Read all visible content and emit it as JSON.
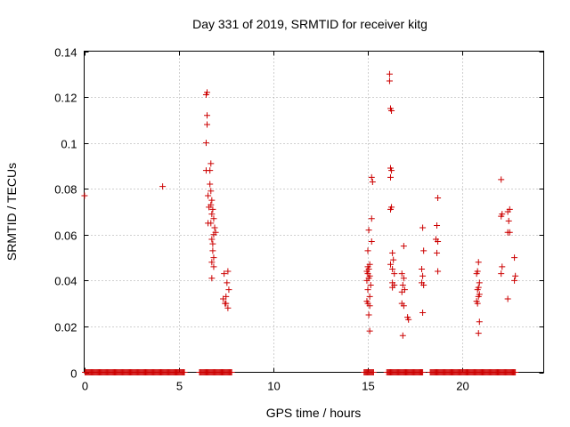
{
  "chart_data": {
    "type": "scatter",
    "title": "Day 331 of 2019, SRMTID for receiver kitg",
    "xlabel": "GPS time / hours",
    "ylabel": "SRMTID / TECUs",
    "xlim": [
      0,
      24.3
    ],
    "ylim": [
      0,
      0.14
    ],
    "grid": true,
    "marker": "+",
    "marker_color": "#cc0000",
    "x_ticks": [
      0,
      5,
      10,
      15,
      20
    ],
    "x_tick_labels": [
      "0",
      "5",
      "10",
      "15",
      "20"
    ],
    "y_ticks": [
      0,
      0.02,
      0.04,
      0.06,
      0.08,
      0.1,
      0.12,
      0.14
    ],
    "y_tick_labels": [
      "0",
      "0.02",
      "0.04",
      "0.06",
      "0.08",
      "0.1",
      "0.12",
      "0.14"
    ],
    "baseline_segments": [
      [
        0.05,
        5.3
      ],
      [
        6.1,
        7.8
      ],
      [
        14.8,
        15.3
      ],
      [
        16.0,
        17.9
      ],
      [
        18.3,
        22.8
      ]
    ],
    "baseline_step": 0.05,
    "points": [
      [
        0.02,
        0.077
      ],
      [
        4.15,
        0.081
      ],
      [
        6.45,
        0.121
      ],
      [
        6.5,
        0.122
      ],
      [
        6.5,
        0.112
      ],
      [
        6.5,
        0.108
      ],
      [
        6.45,
        0.1
      ],
      [
        6.45,
        0.088
      ],
      [
        6.65,
        0.088
      ],
      [
        6.7,
        0.091
      ],
      [
        6.55,
        0.077
      ],
      [
        6.6,
        0.072
      ],
      [
        6.65,
        0.082
      ],
      [
        6.7,
        0.079
      ],
      [
        6.75,
        0.075
      ],
      [
        6.7,
        0.073
      ],
      [
        6.8,
        0.071
      ],
      [
        6.75,
        0.069
      ],
      [
        6.55,
        0.065
      ],
      [
        6.7,
        0.065
      ],
      [
        6.85,
        0.067
      ],
      [
        6.9,
        0.063
      ],
      [
        6.95,
        0.061
      ],
      [
        6.85,
        0.06
      ],
      [
        6.75,
        0.058
      ],
      [
        6.8,
        0.056
      ],
      [
        6.8,
        0.053
      ],
      [
        6.85,
        0.05
      ],
      [
        6.75,
        0.048
      ],
      [
        6.85,
        0.046
      ],
      [
        6.75,
        0.041
      ],
      [
        7.4,
        0.043
      ],
      [
        7.6,
        0.044
      ],
      [
        7.55,
        0.039
      ],
      [
        7.65,
        0.036
      ],
      [
        7.5,
        0.033
      ],
      [
        7.35,
        0.032
      ],
      [
        7.45,
        0.03
      ],
      [
        7.6,
        0.028
      ],
      [
        7.5,
        0.03
      ],
      [
        15.05,
        0.062
      ],
      [
        15.0,
        0.053
      ],
      [
        15.0,
        0.046
      ],
      [
        15.05,
        0.045
      ],
      [
        15.1,
        0.047
      ],
      [
        14.95,
        0.044
      ],
      [
        15.0,
        0.043
      ],
      [
        15.1,
        0.042
      ],
      [
        14.95,
        0.04
      ],
      [
        15.05,
        0.041
      ],
      [
        15.15,
        0.038
      ],
      [
        15.0,
        0.036
      ],
      [
        15.1,
        0.033
      ],
      [
        14.95,
        0.031
      ],
      [
        15.0,
        0.03
      ],
      [
        15.1,
        0.029
      ],
      [
        15.05,
        0.025
      ],
      [
        15.1,
        0.018
      ],
      [
        15.2,
        0.085
      ],
      [
        15.25,
        0.083
      ],
      [
        15.2,
        0.067
      ],
      [
        15.2,
        0.057
      ],
      [
        16.15,
        0.13
      ],
      [
        16.15,
        0.127
      ],
      [
        16.2,
        0.115
      ],
      [
        16.25,
        0.114
      ],
      [
        16.2,
        0.089
      ],
      [
        16.25,
        0.088
      ],
      [
        16.2,
        0.085
      ],
      [
        16.25,
        0.072
      ],
      [
        16.2,
        0.071
      ],
      [
        16.3,
        0.052
      ],
      [
        16.35,
        0.049
      ],
      [
        16.2,
        0.047
      ],
      [
        16.3,
        0.045
      ],
      [
        16.4,
        0.043
      ],
      [
        16.3,
        0.039
      ],
      [
        16.4,
        0.038
      ],
      [
        16.3,
        0.037
      ],
      [
        16.9,
        0.055
      ],
      [
        16.8,
        0.043
      ],
      [
        16.9,
        0.041
      ],
      [
        16.85,
        0.038
      ],
      [
        16.95,
        0.036
      ],
      [
        16.8,
        0.035
      ],
      [
        16.8,
        0.03
      ],
      [
        16.9,
        0.029
      ],
      [
        16.85,
        0.016
      ],
      [
        17.1,
        0.024
      ],
      [
        17.15,
        0.023
      ],
      [
        17.9,
        0.063
      ],
      [
        17.95,
        0.053
      ],
      [
        17.85,
        0.045
      ],
      [
        17.9,
        0.042
      ],
      [
        17.85,
        0.039
      ],
      [
        17.95,
        0.038
      ],
      [
        17.9,
        0.026
      ],
      [
        18.7,
        0.076
      ],
      [
        18.65,
        0.064
      ],
      [
        18.6,
        0.058
      ],
      [
        18.7,
        0.057
      ],
      [
        18.65,
        0.052
      ],
      [
        18.7,
        0.044
      ],
      [
        20.85,
        0.048
      ],
      [
        20.8,
        0.044
      ],
      [
        20.75,
        0.043
      ],
      [
        20.9,
        0.039
      ],
      [
        20.85,
        0.037
      ],
      [
        20.8,
        0.036
      ],
      [
        20.9,
        0.034
      ],
      [
        20.85,
        0.033
      ],
      [
        20.75,
        0.031
      ],
      [
        20.8,
        0.03
      ],
      [
        20.9,
        0.022
      ],
      [
        20.85,
        0.017
      ],
      [
        22.05,
        0.084
      ],
      [
        22.1,
        0.069
      ],
      [
        22.05,
        0.068
      ],
      [
        22.4,
        0.07
      ],
      [
        22.5,
        0.071
      ],
      [
        22.45,
        0.066
      ],
      [
        22.5,
        0.061
      ],
      [
        22.4,
        0.061
      ],
      [
        22.1,
        0.046
      ],
      [
        22.05,
        0.043
      ],
      [
        22.4,
        0.032
      ],
      [
        22.75,
        0.05
      ],
      [
        22.8,
        0.042
      ],
      [
        22.75,
        0.04
      ]
    ]
  }
}
